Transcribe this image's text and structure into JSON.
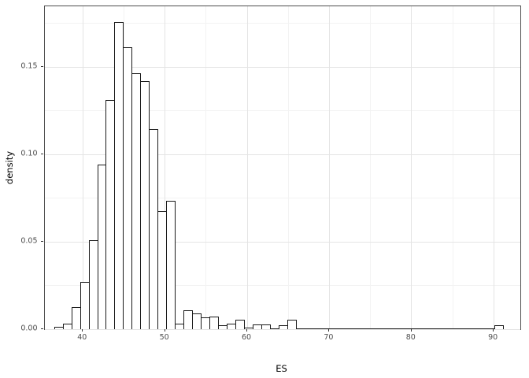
{
  "chart_data": {
    "type": "bar",
    "subtype": "histogram",
    "title": "",
    "xlabel": "ES",
    "ylabel": "density",
    "legend": "none",
    "grid": true,
    "xlim": [
      35.33,
      93.19
    ],
    "ylim": [
      0,
      0.1847
    ],
    "x_major_ticks": [
      40,
      50,
      60,
      70,
      80,
      90
    ],
    "x_major_labels": [
      "40",
      "50",
      "60",
      "70",
      "80",
      "90"
    ],
    "x_minor_ticks": [
      45,
      55,
      65,
      75,
      85
    ],
    "y_major_ticks": [
      0,
      0.05,
      0.1,
      0.15
    ],
    "y_major_labels": [
      "0.00",
      "0.05",
      "0.10",
      "0.15"
    ],
    "y_minor_ticks": [
      0.025,
      0.075,
      0.125,
      0.175
    ],
    "bin_start": 36.5,
    "bin_width": 1.05,
    "densities": [
      0.0013,
      0.0032,
      0.0125,
      0.027,
      0.051,
      0.094,
      0.131,
      0.1755,
      0.1615,
      0.1465,
      0.142,
      0.1145,
      0.0675,
      0.0735,
      0.003,
      0.0108,
      0.0088,
      0.0066,
      0.0072,
      0.0024,
      0.003,
      0.0056,
      0.0009,
      0.0027,
      0.0027,
      0,
      0.0024,
      0.0054,
      0,
      0,
      0,
      0,
      0,
      0,
      0,
      0,
      0,
      0,
      0,
      0,
      0,
      0,
      0,
      0,
      0,
      0,
      0,
      0,
      0,
      0,
      0,
      0.0022
    ],
    "colors": {
      "bar_fill": "#ffffff",
      "bar_stroke": "#1a1a1a",
      "panel_border": "#4d4d4d",
      "grid_major": "#e4e4e4",
      "grid_minor": "#f3f3f3",
      "tick": "#333333",
      "tick_label": "#4d4d4d",
      "axis_title": "#000000"
    }
  }
}
